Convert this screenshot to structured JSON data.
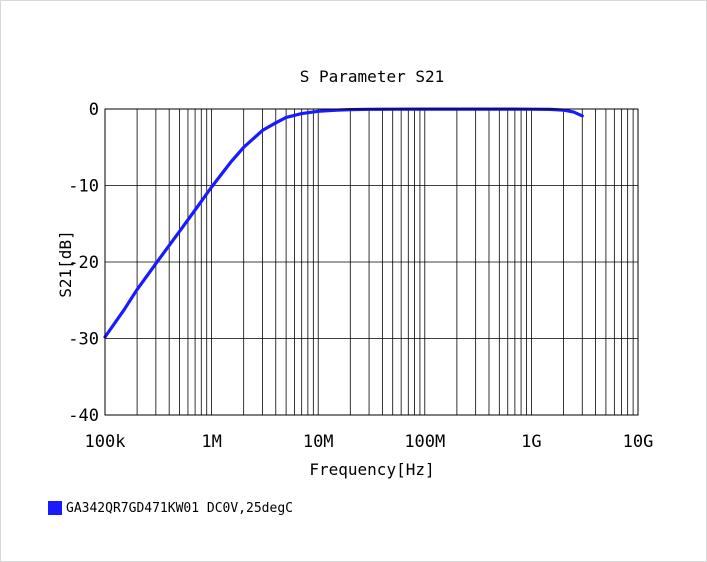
{
  "chart_data": {
    "type": "line",
    "title": "S Parameter S21",
    "xlabel": "Frequency[Hz]",
    "ylabel": "S21[dB]",
    "x_scale": "log",
    "xlim": [
      100000,
      10000000000
    ],
    "ylim": [
      -40,
      0
    ],
    "x_ticks": [
      {
        "value": 100000,
        "label": "100k"
      },
      {
        "value": 1000000,
        "label": "1M"
      },
      {
        "value": 10000000,
        "label": "10M"
      },
      {
        "value": 100000000,
        "label": "100M"
      },
      {
        "value": 1000000000,
        "label": "1G"
      },
      {
        "value": 10000000000,
        "label": "10G"
      }
    ],
    "y_ticks": [
      {
        "value": 0,
        "label": "0"
      },
      {
        "value": -10,
        "label": "-10"
      },
      {
        "value": -20,
        "label": "-20"
      },
      {
        "value": -30,
        "label": "-30"
      },
      {
        "value": -40,
        "label": "-40"
      }
    ],
    "grid": true,
    "legend_position": "bottom-left",
    "series": [
      {
        "name": "GA342QR7GD471KW01 DC0V,25degC",
        "color": "#1a1aff",
        "x": [
          100000,
          150000,
          200000,
          300000,
          500000,
          700000,
          1000000,
          1500000,
          2000000,
          3000000,
          4000000,
          5000000,
          7000000,
          10000000,
          15000000,
          20000000,
          30000000,
          50000000,
          100000000,
          200000000,
          500000000,
          1000000000,
          1500000000,
          2000000000,
          2500000000,
          3000000000
        ],
        "y": [
          -29.8,
          -26.3,
          -23.6,
          -20.2,
          -16.0,
          -13.2,
          -10.2,
          -7.0,
          -5.0,
          -2.8,
          -1.8,
          -1.1,
          -0.6,
          -0.3,
          -0.15,
          -0.08,
          -0.04,
          -0.02,
          -0.01,
          -0.01,
          -0.01,
          -0.02,
          -0.05,
          -0.15,
          -0.4,
          -0.9
        ]
      }
    ]
  }
}
